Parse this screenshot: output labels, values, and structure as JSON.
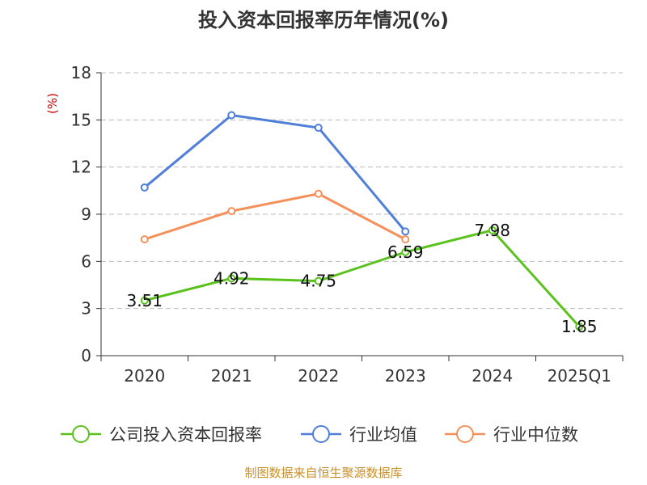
{
  "chart_data": {
    "type": "line",
    "title": "投入资本回报率历年情况(%)",
    "ylabel": "(%)",
    "categories": [
      "2020",
      "2021",
      "2022",
      "2023",
      "2024",
      "2025Q1"
    ],
    "ylim": [
      0,
      18
    ],
    "yticks": [
      0,
      3,
      6,
      9,
      12,
      15,
      18
    ],
    "grid": true,
    "legend_position": "bottom",
    "series": [
      {
        "name": "公司投入资本回报率",
        "color": "#5ac21d",
        "values": [
          3.51,
          4.92,
          4.75,
          6.59,
          7.98,
          1.85
        ],
        "labels": true
      },
      {
        "name": "行业均值",
        "color": "#4f7fd9",
        "values": [
          10.7,
          15.3,
          14.5,
          7.9,
          null,
          null
        ],
        "labels": false
      },
      {
        "name": "行业中位数",
        "color": "#f5905a",
        "values": [
          7.4,
          9.2,
          10.3,
          7.4,
          null,
          null
        ],
        "labels": false
      }
    ],
    "source": "制图数据来自恒生聚源数据库"
  }
}
